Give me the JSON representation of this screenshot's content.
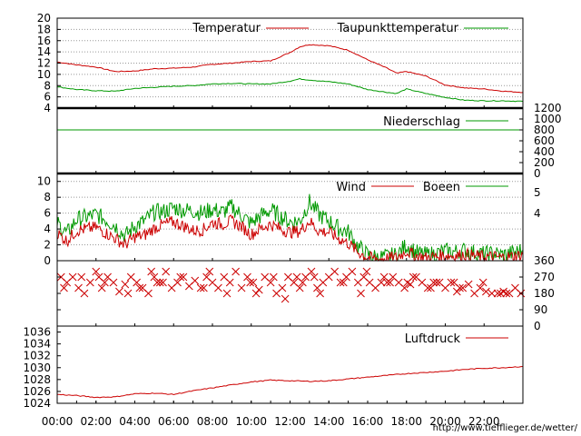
{
  "footer": {
    "url": "http://www.tiefflieger.de/wetter/"
  },
  "x_ticks": [
    "00:00",
    "02:00",
    "04:00",
    "06:00",
    "08:00",
    "10:00",
    "12:00",
    "14:00",
    "16:00",
    "18:00",
    "20:00",
    "22:00"
  ],
  "chart_data": [
    {
      "type": "line",
      "panel": "temperature",
      "ylim": [
        4,
        20
      ],
      "y_ticks": [
        "4",
        "6",
        "8",
        "10",
        "12",
        "14",
        "16",
        "18",
        "20"
      ],
      "grid": true,
      "legend_placement": "top-right",
      "x": [
        0,
        1,
        2,
        3,
        4,
        5,
        6,
        7,
        8,
        9,
        10,
        11,
        12,
        12.5,
        13,
        14,
        15,
        16,
        17,
        17.5,
        18,
        19,
        20,
        21,
        22,
        23,
        24
      ],
      "series": [
        {
          "name": "Temperatur",
          "color": "#cc0000",
          "values": [
            12.2,
            11.7,
            11.3,
            10.5,
            10.6,
            11.0,
            11.1,
            11.3,
            11.8,
            12.0,
            12.3,
            12.4,
            13.9,
            14.9,
            15.3,
            15.1,
            14.3,
            12.6,
            11.1,
            10.2,
            10.5,
            9.7,
            8.1,
            7.6,
            7.4,
            7.0,
            6.8
          ]
        },
        {
          "name": "Taupunkttemperatur",
          "color": "#009900",
          "values": [
            7.8,
            7.3,
            7.1,
            7.0,
            7.5,
            7.7,
            7.9,
            8.0,
            8.3,
            8.4,
            8.3,
            8.3,
            8.8,
            9.2,
            9.0,
            8.7,
            8.3,
            7.3,
            6.8,
            6.6,
            7.4,
            6.6,
            5.9,
            5.4,
            5.3,
            5.3,
            5.2
          ]
        }
      ]
    },
    {
      "type": "line",
      "panel": "precipitation",
      "ylim": [
        0,
        1200
      ],
      "y_ticks": [
        "0",
        "200",
        "400",
        "600",
        "800",
        "1000",
        "1200"
      ],
      "legend_placement": "top-right",
      "x": [
        0,
        24
      ],
      "series": [
        {
          "name": "Niederschlag",
          "color": "#009900",
          "values": [
            800,
            800
          ]
        }
      ]
    },
    {
      "type": "line",
      "panel": "wind",
      "ylim": [
        0,
        11
      ],
      "y_ticks": [
        "0",
        "2",
        "4",
        "6",
        "8",
        "10"
      ],
      "y2_ticks": [
        "4",
        "5"
      ],
      "grid": true,
      "legend_placement": "top-right",
      "x": [
        0,
        0.5,
        1,
        1.5,
        2,
        2.5,
        3,
        3.5,
        4,
        4.5,
        5,
        5.5,
        6,
        6.5,
        7,
        7.5,
        8,
        8.5,
        9,
        9.5,
        10,
        10.5,
        11,
        11.5,
        12,
        12.5,
        13,
        13.5,
        14,
        14.5,
        15,
        15.5,
        16,
        16.5,
        17,
        17.5,
        18,
        18.5,
        19,
        19.5,
        20,
        20.5,
        21,
        21.5,
        22,
        22.5,
        23,
        23.5,
        24
      ],
      "series": [
        {
          "name": "Wind",
          "color": "#cc0000",
          "values": [
            3.5,
            2.5,
            3.8,
            4.0,
            4.2,
            3.5,
            2.8,
            2.0,
            3.0,
            3.2,
            4.1,
            4.6,
            4.9,
            4.4,
            3.8,
            3.9,
            4.8,
            4.6,
            5.0,
            4.3,
            3.3,
            4.1,
            4.6,
            4.0,
            3.6,
            3.7,
            5.0,
            3.7,
            3.6,
            2.8,
            2.2,
            1.1,
            0.4,
            0.2,
            0.3,
            0.4,
            1.2,
            0.6,
            0.4,
            0.5,
            0.7,
            0.6,
            0.8,
            0.6,
            0.5,
            0.5,
            0.4,
            0.6,
            0.7
          ]
        },
        {
          "name": "Boeen",
          "color": "#009900",
          "values": [
            4.8,
            3.4,
            5.2,
            5.5,
            5.8,
            5.2,
            4.4,
            3.1,
            4.4,
            5.0,
            6.1,
            6.2,
            6.7,
            6.4,
            6.3,
            6.0,
            6.5,
            6.1,
            6.8,
            5.7,
            4.7,
            5.7,
            6.4,
            5.6,
            4.9,
            5.0,
            7.4,
            5.8,
            5.0,
            4.1,
            3.6,
            1.8,
            0.7,
            0.4,
            0.5,
            0.7,
            2.0,
            1.0,
            0.7,
            0.9,
            1.2,
            1.1,
            1.3,
            1.0,
            0.8,
            0.9,
            0.7,
            1.0,
            1.3
          ]
        }
      ]
    },
    {
      "type": "scatter",
      "panel": "wind-direction",
      "ylim": [
        0,
        360
      ],
      "y2_ticks": [
        "0",
        "90",
        "180",
        "270",
        "360"
      ],
      "color": "#cc0000",
      "x": [
        0.2,
        0.5,
        0.8,
        1.1,
        1.4,
        1.7,
        2.0,
        2.3,
        2.6,
        2.9,
        3.2,
        3.5,
        3.8,
        4.1,
        4.4,
        4.7,
        5.0,
        5.3,
        5.6,
        5.9,
        6.2,
        6.5,
        6.8,
        7.1,
        7.4,
        7.7,
        8.0,
        8.3,
        8.6,
        8.9,
        9.2,
        9.5,
        9.8,
        10.1,
        10.4,
        10.7,
        11.0,
        11.3,
        11.6,
        11.9,
        12.2,
        12.5,
        12.8,
        13.1,
        13.4,
        13.7,
        14.0,
        14.3,
        14.6,
        14.9,
        15.2,
        15.5,
        15.8,
        16.1,
        16.4,
        16.7,
        17.0,
        17.3,
        17.6,
        17.9,
        18.2,
        18.5,
        18.8,
        19.1,
        19.4,
        19.7,
        20.0,
        20.3,
        20.6,
        20.9,
        21.2,
        21.5,
        21.8,
        22.1,
        22.4,
        22.7,
        23.0,
        23.3,
        23.6,
        23.9,
        0.35,
        1.25,
        2.45,
        3.65,
        4.85,
        5.15,
        6.35,
        7.55,
        8.75,
        9.95,
        11.15,
        11.75,
        12.35,
        13.55,
        14.75,
        15.95,
        17.15,
        18.35,
        19.55,
        20.75,
        21.95,
        23.15,
        2.15,
        4.25,
        5.45,
        7.85,
        10.25,
        12.65,
        13.25,
        15.65,
        16.85,
        18.05,
        19.25,
        20.45,
        22.85
      ],
      "y": [
        270,
        240,
        270,
        210,
        180,
        240,
        300,
        210,
        270,
        240,
        190,
        230,
        270,
        240,
        210,
        180,
        270,
        240,
        300,
        210,
        240,
        270,
        220,
        250,
        210,
        270,
        240,
        210,
        270,
        240,
        300,
        210,
        270,
        240,
        200,
        270,
        240,
        180,
        210,
        270,
        240,
        210,
        270,
        300,
        210,
        240,
        270,
        300,
        240,
        270,
        300,
        240,
        270,
        240,
        210,
        240,
        240,
        270,
        240,
        210,
        230,
        270,
        240,
        210,
        240,
        240,
        210,
        240,
        190,
        210,
        230,
        180,
        210,
        190,
        180,
        180,
        190,
        180,
        210,
        180,
        210,
        270,
        240,
        180,
        300,
        240,
        270,
        210,
        180,
        240,
        270,
        150,
        270,
        180,
        240,
        300,
        240,
        270,
        240,
        210,
        240,
        180,
        270,
        210,
        240,
        300,
        180,
        240,
        270,
        180,
        270,
        240,
        210,
        240,
        180
      ]
    },
    {
      "type": "line",
      "panel": "pressure",
      "ylim": [
        1024,
        1037
      ],
      "y_ticks": [
        "1024",
        "1026",
        "1028",
        "1030",
        "1032",
        "1034",
        "1036"
      ],
      "legend_placement": "top-right",
      "x": [
        0,
        1,
        2,
        3,
        4,
        5,
        6,
        7,
        8,
        9,
        10,
        11,
        12,
        13,
        14,
        15,
        16,
        17,
        18,
        19,
        20,
        21,
        22,
        23,
        24
      ],
      "series": [
        {
          "name": "Luftdruck",
          "color": "#cc0000",
          "values": [
            1025.5,
            1025.3,
            1025.0,
            1025.1,
            1025.6,
            1025.7,
            1025.5,
            1026.1,
            1026.6,
            1027.1,
            1027.6,
            1027.9,
            1027.8,
            1027.7,
            1027.8,
            1028.1,
            1028.4,
            1028.7,
            1029.0,
            1029.2,
            1029.4,
            1029.7,
            1029.9,
            1030.0,
            1030.2
          ]
        }
      ]
    }
  ]
}
